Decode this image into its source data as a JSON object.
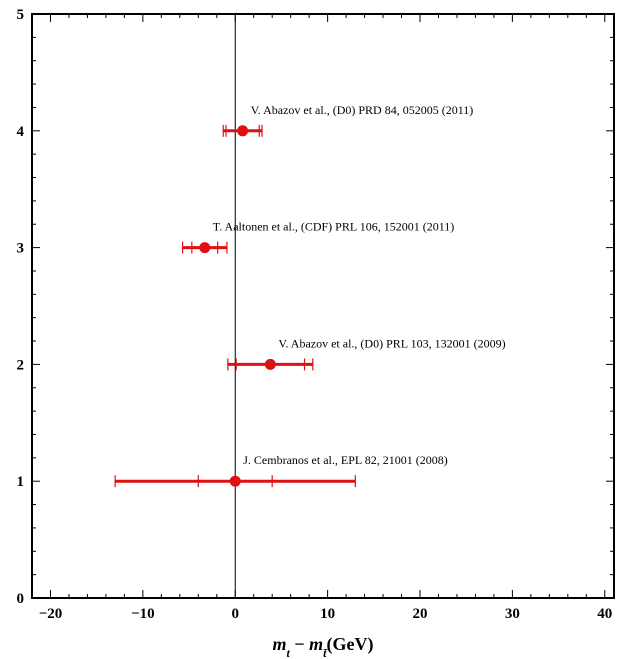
{
  "chart_data": {
    "type": "scatter",
    "title": "",
    "xlabel_parts": {
      "m1": "m",
      "sub1": "t",
      "minus": " − ",
      "m2": "m",
      "sub2": "t̄",
      "unit": "(GeV)"
    },
    "ylabel": "",
    "xlim": [
      -22,
      41
    ],
    "ylim": [
      0,
      5
    ],
    "xticks": [
      -20,
      -10,
      0,
      10,
      20,
      30,
      40
    ],
    "xtick_labels": [
      "−20",
      "−10",
      "0",
      "10",
      "20",
      "30",
      "40"
    ],
    "yticks": [
      0,
      1,
      2,
      3,
      4,
      5
    ],
    "ytick_labels": [
      "0",
      "1",
      "2",
      "3",
      "4",
      "5"
    ],
    "reference_line_x": 0,
    "grid": false,
    "marker_color": "#e01010",
    "points": [
      {
        "label": "J. Cembranos et al., EPL 82, 21001 (2008)",
        "x": 0.0,
        "y": 1,
        "stat": 4.0,
        "total": 13.0
      },
      {
        "label": "V. Abazov et al., (D0) PRL 103, 132001 (2009)",
        "x": 3.8,
        "y": 2,
        "stat": 3.7,
        "total": 4.6
      },
      {
        "label": "T. Aaltonen et al., (CDF) PRL 106, 152001 (2011)",
        "x": -3.3,
        "y": 3,
        "stat": 1.4,
        "total": 2.4
      },
      {
        "label": "V. Abazov et al., (D0) PRD 84, 052005 (2011)",
        "x": 0.8,
        "y": 4,
        "stat": 1.8,
        "total": 2.1
      }
    ]
  }
}
